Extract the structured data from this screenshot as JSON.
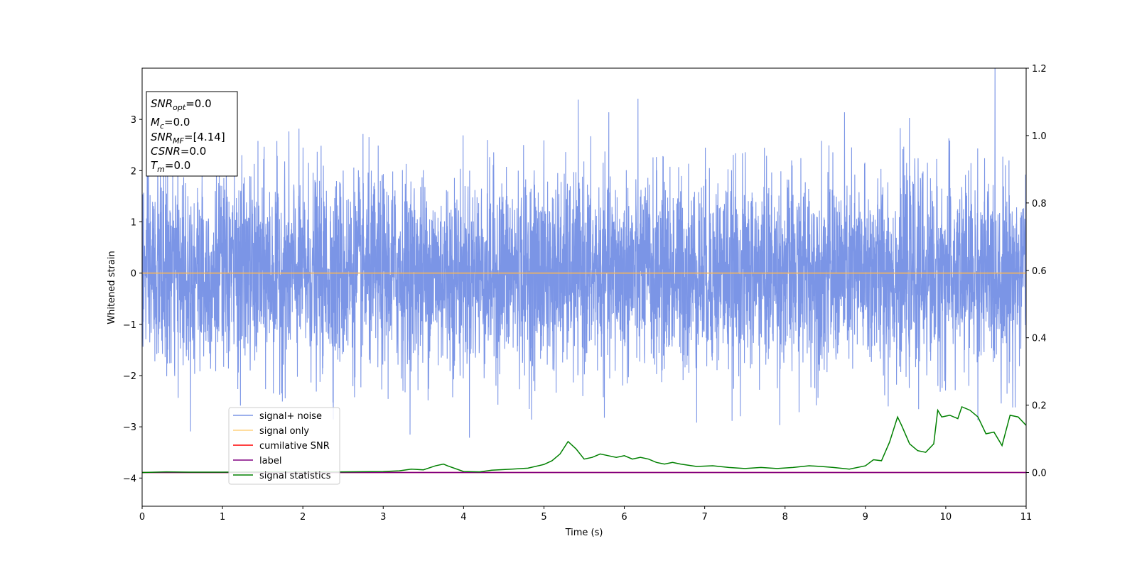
{
  "chart_data": {
    "type": "line",
    "xlabel": "Time (s)",
    "ylabel": "Whitened strain",
    "xlim": [
      0,
      11
    ],
    "ylim": [
      -4.55,
      4.0
    ],
    "y2lim": [
      -0.1,
      1.2
    ],
    "x_ticks": [
      0,
      1,
      2,
      3,
      4,
      5,
      6,
      7,
      8,
      9,
      10,
      11
    ],
    "y_ticks": [
      -4,
      -3,
      -2,
      -1,
      0,
      1,
      2,
      3
    ],
    "y2_ticks": [
      "0.0",
      "0.2",
      "0.4",
      "0.6",
      "0.8",
      "1.0",
      "1.2"
    ],
    "grid": false,
    "legend_position": "lower-left",
    "legend": [
      {
        "label": "signal+ noise",
        "color": "#7b95e6"
      },
      {
        "label": "signal only",
        "color": "#ffd27f"
      },
      {
        "label": "cumilative SNR",
        "color": "#ff0000"
      },
      {
        "label": "label",
        "color": "#800080"
      },
      {
        "label": "signal statistics",
        "color": "#008000"
      }
    ],
    "info_box": {
      "snr_opt": {
        "base": "SNR",
        "sub": "opt",
        "value": "=0.0"
      },
      "mc": {
        "base": "M",
        "sub": "c",
        "value": "=0.0"
      },
      "snr_mf": {
        "base": "SNR",
        "sub": "MF",
        "value": "=[4.14]"
      },
      "csnr": {
        "base": "CSNR",
        "sub": "",
        "value": "=0.0"
      },
      "tm": {
        "base": "T",
        "sub": "m",
        "value": "=0.0"
      }
    },
    "series": [
      {
        "name": "signal+ noise",
        "axis": "left",
        "kind": "noise",
        "color": "#7b95e6",
        "std": 0.95,
        "duration": 11
      },
      {
        "name": "signal only",
        "axis": "left",
        "color": "#ffb84d",
        "x": [
          0,
          11
        ],
        "y": [
          0,
          0
        ]
      },
      {
        "name": "cumilative SNR",
        "axis": "right",
        "color": "#ff0000",
        "x": [
          0,
          11
        ],
        "y": [
          0,
          0
        ]
      },
      {
        "name": "label",
        "axis": "right",
        "color": "#800080",
        "x": [
          0,
          11
        ],
        "y": [
          0,
          0
        ]
      },
      {
        "name": "signal statistics",
        "axis": "right",
        "color": "#008000",
        "x": [
          0,
          0.3,
          0.6,
          1.0,
          1.5,
          2.0,
          2.5,
          3.0,
          3.2,
          3.35,
          3.5,
          3.65,
          3.75,
          3.8,
          4.0,
          4.2,
          4.35,
          4.6,
          4.8,
          5.0,
          5.1,
          5.2,
          5.3,
          5.4,
          5.5,
          5.6,
          5.7,
          5.8,
          5.9,
          6.0,
          6.1,
          6.2,
          6.3,
          6.4,
          6.5,
          6.6,
          6.7,
          6.9,
          7.1,
          7.3,
          7.5,
          7.7,
          7.9,
          8.1,
          8.3,
          8.45,
          8.6,
          8.8,
          9.0,
          9.1,
          9.2,
          9.3,
          9.4,
          9.45,
          9.55,
          9.65,
          9.75,
          9.85,
          9.9,
          9.95,
          10.05,
          10.15,
          10.2,
          10.3,
          10.4,
          10.5,
          10.6,
          10.7,
          10.8,
          10.9,
          11.0
        ],
        "y": [
          0.0,
          0.002,
          0.001,
          0.001,
          0.002,
          0.002,
          0.002,
          0.003,
          0.005,
          0.01,
          0.008,
          0.02,
          0.025,
          0.02,
          0.003,
          0.002,
          0.007,
          0.01,
          0.013,
          0.024,
          0.035,
          0.055,
          0.092,
          0.07,
          0.04,
          0.045,
          0.055,
          0.05,
          0.045,
          0.05,
          0.04,
          0.045,
          0.04,
          0.03,
          0.025,
          0.03,
          0.025,
          0.018,
          0.02,
          0.015,
          0.012,
          0.015,
          0.012,
          0.015,
          0.02,
          0.018,
          0.015,
          0.01,
          0.02,
          0.038,
          0.035,
          0.09,
          0.165,
          0.14,
          0.085,
          0.065,
          0.06,
          0.085,
          0.185,
          0.165,
          0.17,
          0.16,
          0.195,
          0.185,
          0.165,
          0.115,
          0.12,
          0.08,
          0.17,
          0.165,
          0.14
        ]
      }
    ]
  }
}
